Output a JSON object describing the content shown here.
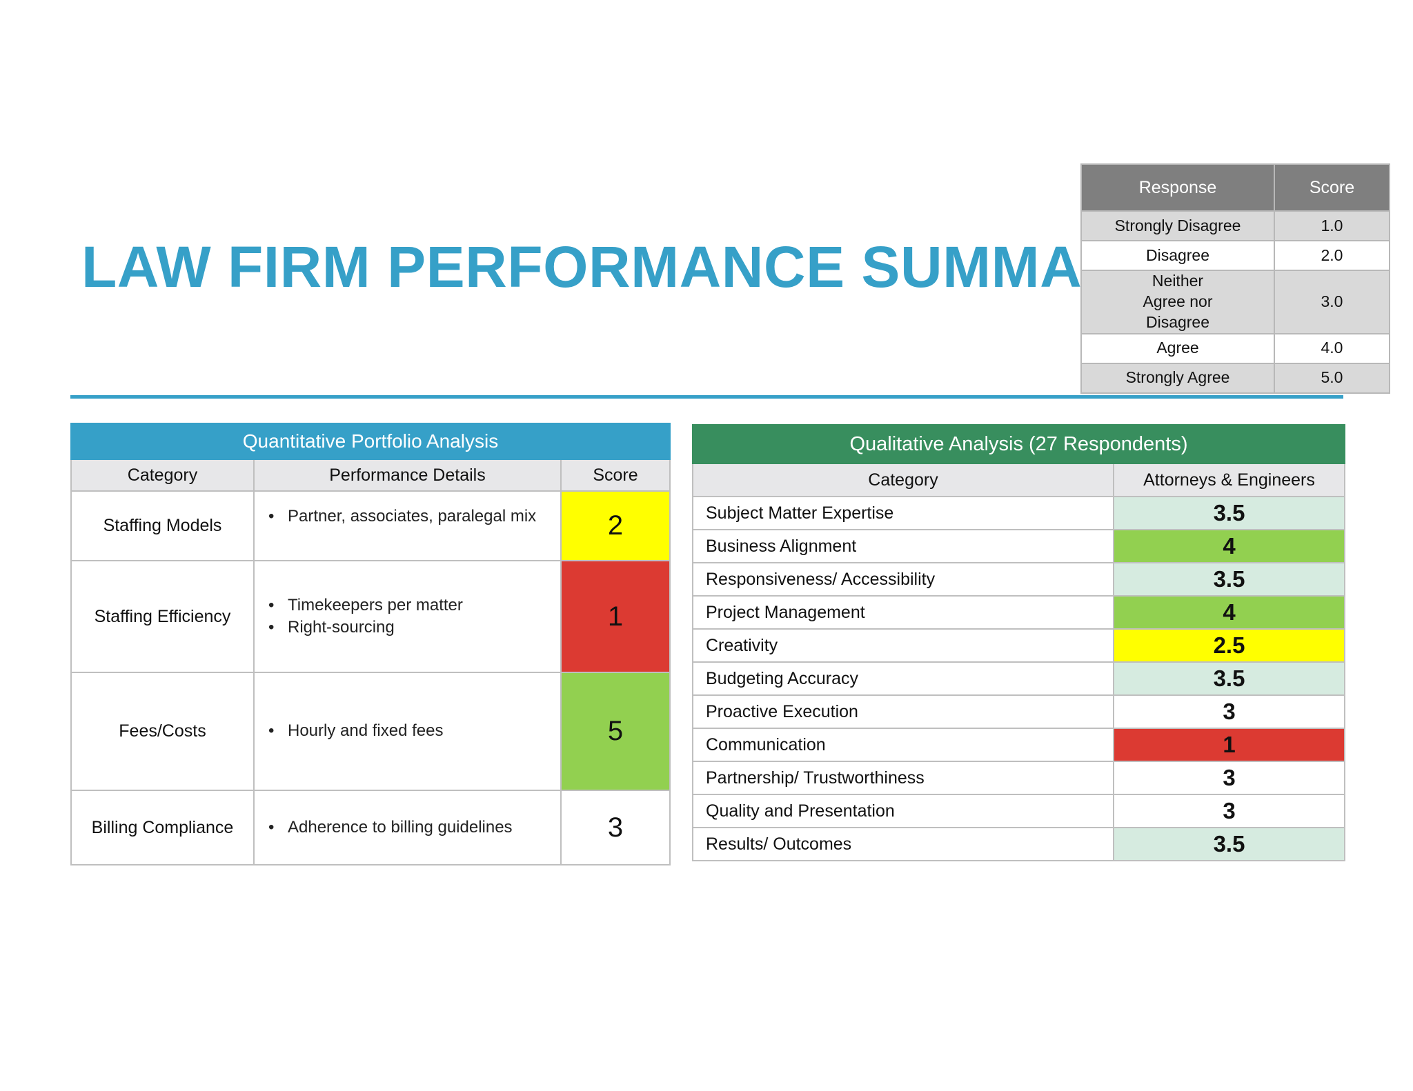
{
  "title": "LAW FIRM PERFORMANCE SUMMARY",
  "legend": {
    "headers": [
      "Response",
      "Score"
    ],
    "rows": [
      {
        "response": "Strongly Disagree",
        "score": "1.0"
      },
      {
        "response": "Disagree",
        "score": "2.0"
      },
      {
        "response": "Neither Agree nor Disagree",
        "score": "3.0"
      },
      {
        "response": "Agree",
        "score": "4.0"
      },
      {
        "response": "Strongly Agree",
        "score": "5.0"
      }
    ]
  },
  "quantitative": {
    "title": "Quantitative  Portfolio Analysis",
    "header_color": "#36a0c8",
    "headers": [
      "Category",
      "Performance Details",
      "Score"
    ],
    "rows": [
      {
        "category": "Staffing Models",
        "details": [
          "Partner, associates, paralegal mix"
        ],
        "score": "2",
        "color": "#ffff00"
      },
      {
        "category": "Staffing Efficiency",
        "details": [
          "Timekeepers per matter",
          "Right-sourcing"
        ],
        "score": "1",
        "color": "#dc3a32"
      },
      {
        "category": "Fees/Costs",
        "details": [
          "Hourly and fixed fees"
        ],
        "score": "5",
        "color": "#92d050"
      },
      {
        "category": "Billing Compliance",
        "details": [
          "Adherence to billing guidelines"
        ],
        "score": "3",
        "color": "#ffffff"
      }
    ]
  },
  "qualitative": {
    "title": "Qualitative Analysis (27 Respondents)",
    "header_color": "#388e5e",
    "headers": [
      "Category",
      "Attorneys & Engineers"
    ],
    "rows": [
      {
        "category": "Subject Matter Expertise",
        "score": "3.5",
        "color": "#d6ebe0"
      },
      {
        "category": "Business Alignment",
        "score": "4",
        "color": "#92d050"
      },
      {
        "category": "Responsiveness/ Accessibility",
        "score": "3.5",
        "color": "#d6ebe0"
      },
      {
        "category": "Project Management",
        "score": "4",
        "color": "#92d050"
      },
      {
        "category": "Creativity",
        "score": "2.5",
        "color": "#ffff00"
      },
      {
        "category": "Budgeting Accuracy",
        "score": "3.5",
        "color": "#d6ebe0"
      },
      {
        "category": "Proactive Execution",
        "score": "3",
        "color": "#ffffff"
      },
      {
        "category": "Communication",
        "score": "1",
        "color": "#dc3a32"
      },
      {
        "category": "Partnership/ Trustworthiness",
        "score": "3",
        "color": "#ffffff"
      },
      {
        "category": "Quality and Presentation",
        "score": "3",
        "color": "#ffffff"
      },
      {
        "category": "Results/ Outcomes",
        "score": "3.5",
        "color": "#d6ebe0"
      }
    ]
  }
}
